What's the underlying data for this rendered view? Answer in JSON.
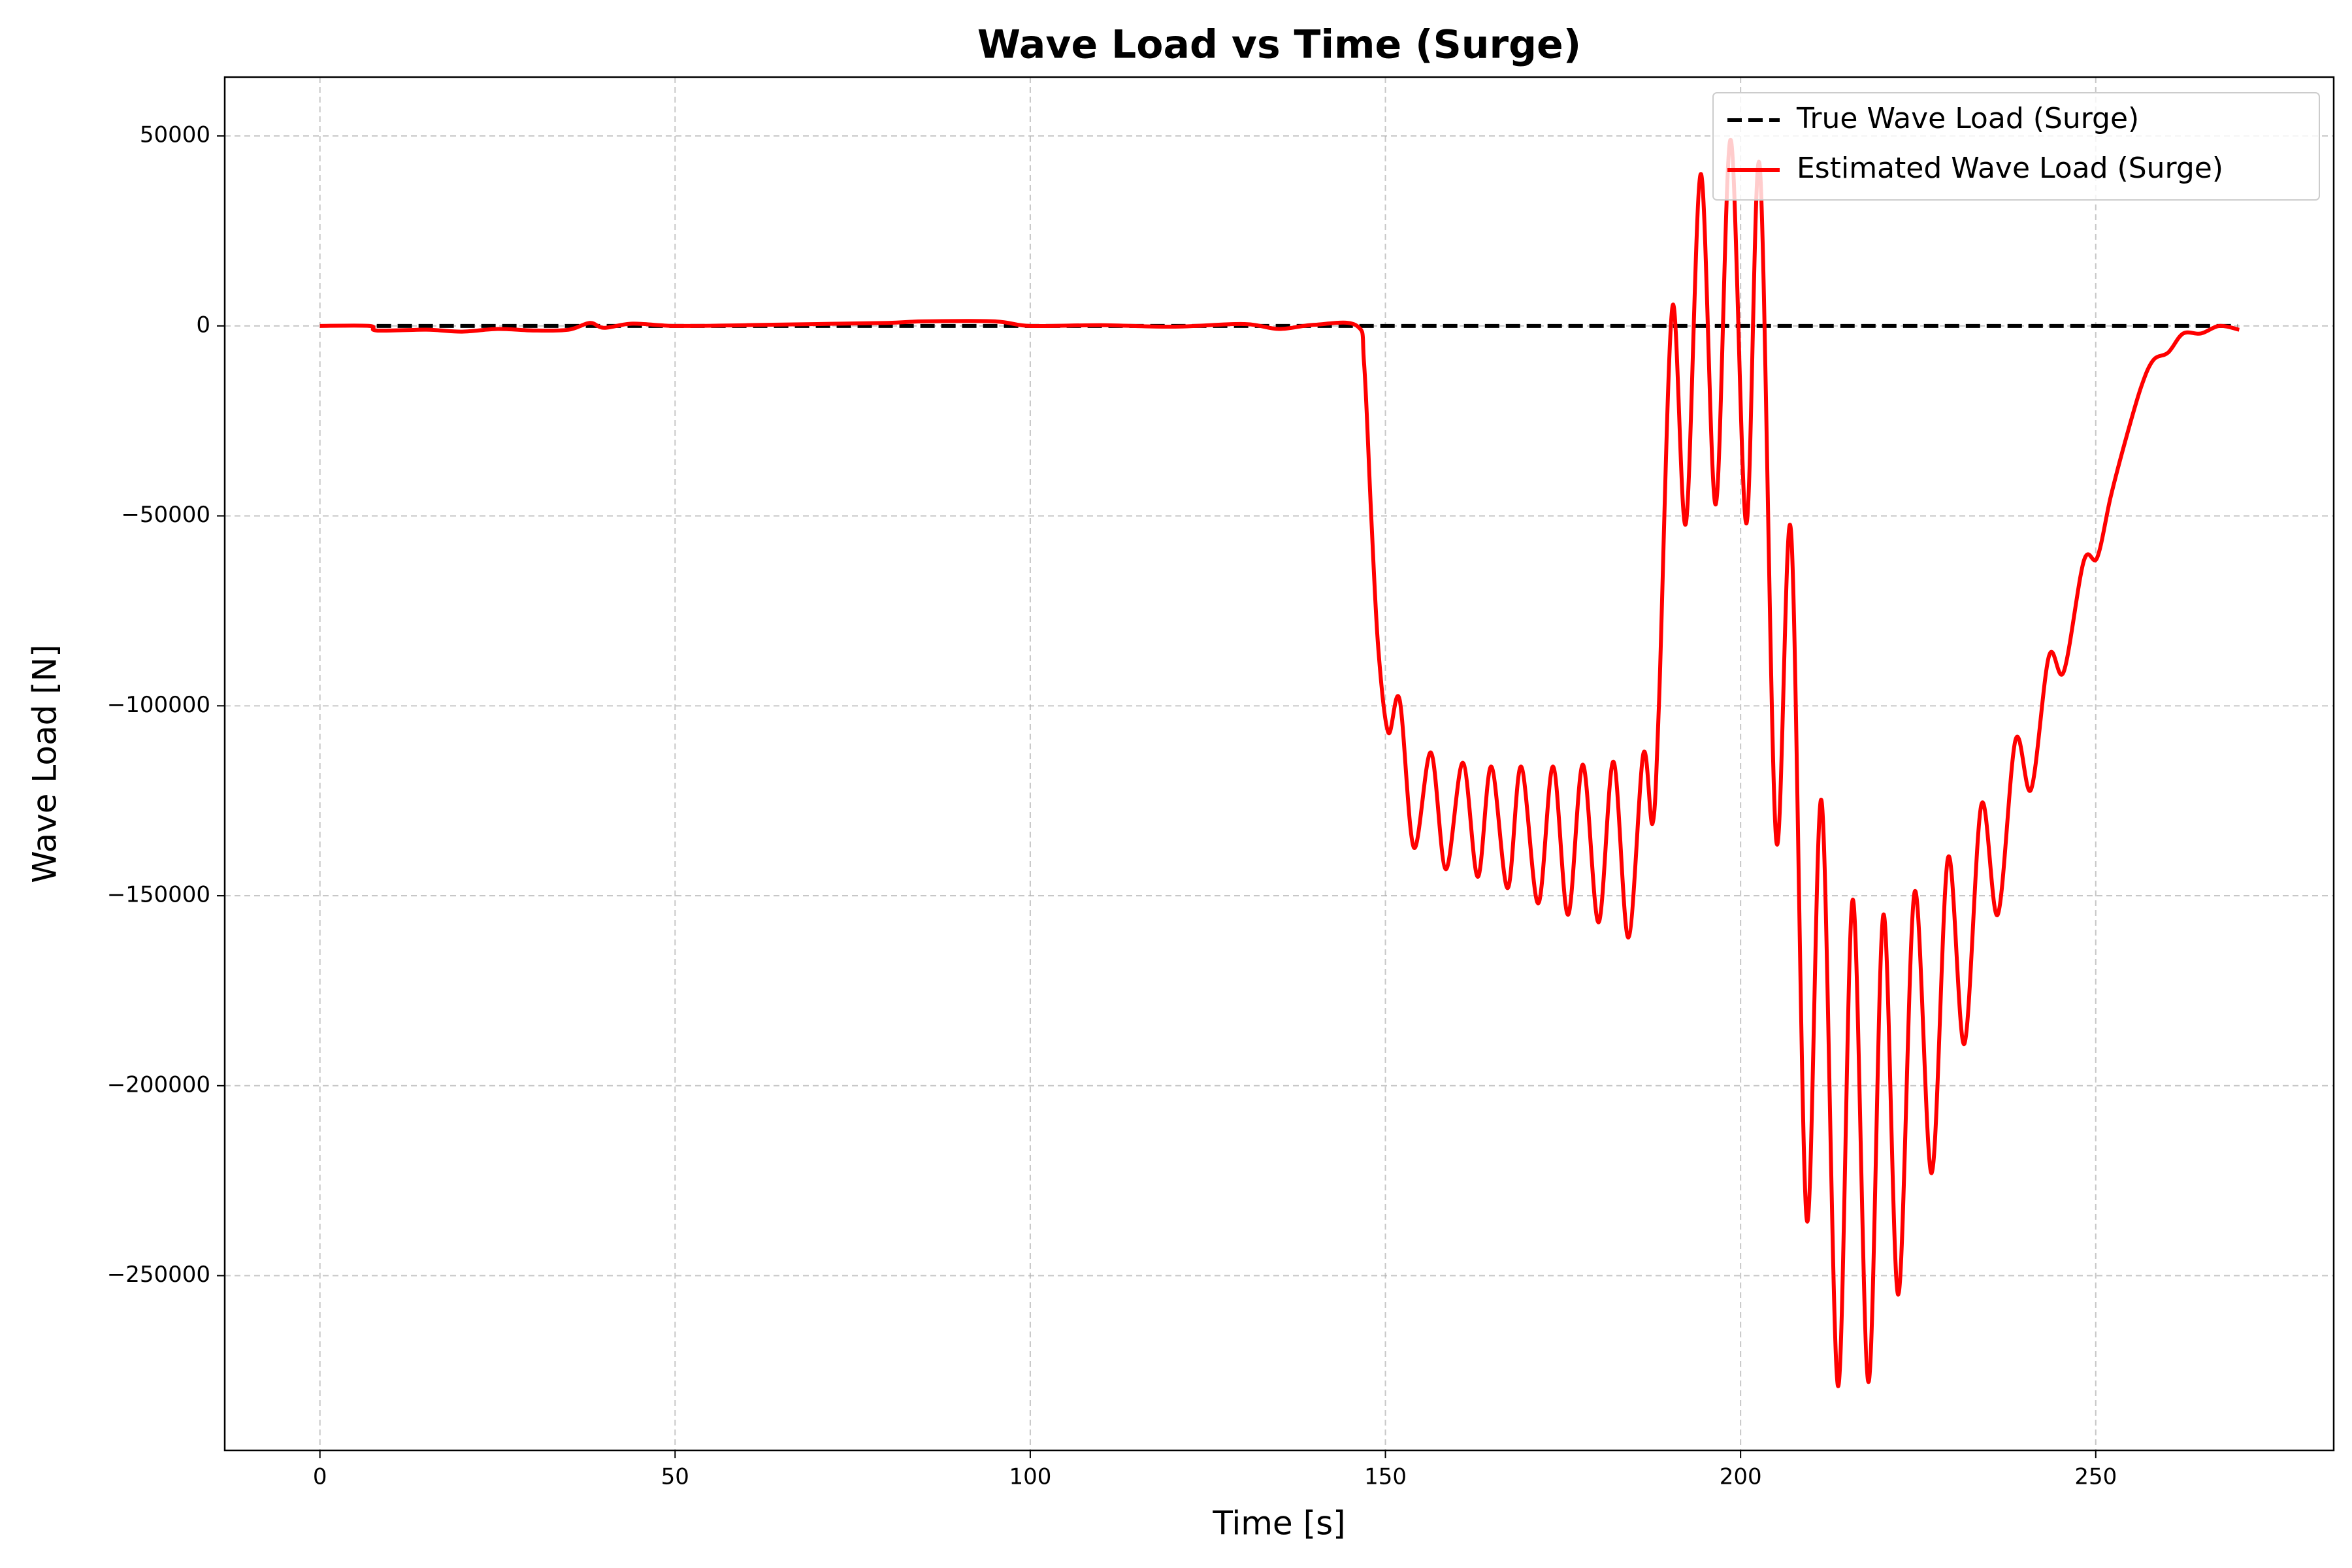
{
  "chart_data": {
    "type": "line",
    "title": "Wave Load vs Time (Surge)",
    "x_label": "Time [s]",
    "y_label": "Wave Load [N]",
    "xlim": [
      -13.4,
      283.5
    ],
    "ylim": [
      -296000,
      65500
    ],
    "xticks": [
      0,
      50,
      100,
      150,
      200,
      250
    ],
    "yticks": [
      {
        "value": -250000,
        "label": "−250000"
      },
      {
        "value": -200000,
        "label": "−200000"
      },
      {
        "value": -150000,
        "label": "−150000"
      },
      {
        "value": -100000,
        "label": "−100000"
      },
      {
        "value": -50000,
        "label": "−50000"
      },
      0,
      50000
    ],
    "grid": true,
    "legend": "upper right",
    "series": [
      {
        "name": "True Wave Load (Surge)",
        "color": "#000000",
        "dashed": true,
        "x": [
          8,
          270
        ],
        "values": [
          0,
          0
        ]
      },
      {
        "name": "Estimated Wave Load (Surge)",
        "color": "#ff0000",
        "dashed": false,
        "x": [
          0,
          7,
          8,
          15,
          20,
          25,
          30,
          35,
          38,
          40,
          44,
          50,
          60,
          70,
          80,
          85,
          95,
          100,
          110,
          120,
          130,
          135,
          140,
          146,
          147,
          148,
          149,
          150.4,
          152,
          154,
          156.4,
          158.5,
          160.9,
          163,
          164.9,
          167.2,
          169.1,
          171.5,
          173.6,
          175.7,
          177.8,
          180,
          182.1,
          184.2,
          186.3,
          187.6,
          188.5,
          190.4,
          192.3,
          194.4,
          196.5,
          198.6,
          200.8,
          202.7,
          205,
          207.1,
          209.3,
          211.4,
          213.7,
          215.8,
          218,
          220.1,
          222.2,
          224.5,
          226.9,
          229.2,
          231.5,
          233.9,
          236.2,
          238.7,
          240.9,
          243.4,
          245.5,
          248.3,
          250.2,
          252.1,
          254.2,
          256.4,
          258.1,
          260.2,
          262.3,
          264.8,
          267.4,
          270.2
        ],
        "values": [
          0,
          0,
          -1200,
          -1000,
          -1500,
          -800,
          -1200,
          -1000,
          800,
          -500,
          600,
          0,
          200,
          500,
          800,
          1200,
          1200,
          0,
          200,
          -200,
          500,
          -800,
          300,
          0,
          -10000,
          -50000,
          -85000,
          -107000,
          -98400,
          -137300,
          -112300,
          -143000,
          -115000,
          -145000,
          -116000,
          -148000,
          -116000,
          -152000,
          -116000,
          -155000,
          -115500,
          -157000,
          -114700,
          -161000,
          -112700,
          -131000,
          -100000,
          5000,
          -52000,
          40000,
          -47000,
          49000,
          -52000,
          42000,
          -135000,
          -54000,
          -235000,
          -125000,
          -279000,
          -151000,
          -278000,
          -155000,
          -255000,
          -149000,
          -223000,
          -140000,
          -189000,
          -126000,
          -155000,
          -109000,
          -122000,
          -87000,
          -91000,
          -62000,
          -61000,
          -45000,
          -30000,
          -16000,
          -9000,
          -7000,
          -2000,
          -2000,
          0,
          -1000
        ]
      }
    ]
  }
}
